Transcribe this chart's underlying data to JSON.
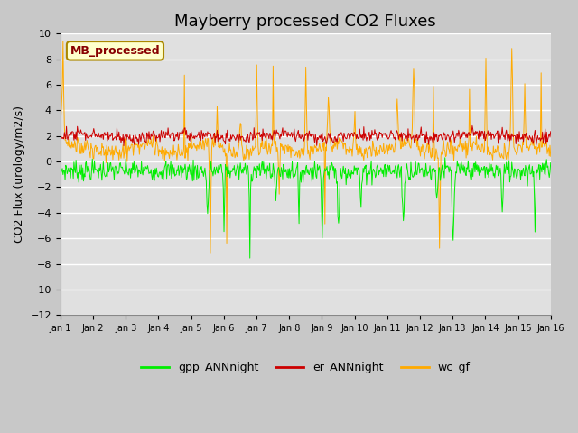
{
  "title": "Mayberry processed CO2 Fluxes",
  "ylabel": "CO2 Flux (urology/m2/s)",
  "ylim": [
    -12,
    10
  ],
  "yticks": [
    -12,
    -10,
    -8,
    -6,
    -4,
    -2,
    0,
    2,
    4,
    6,
    8,
    10
  ],
  "xlabel_ticks": [
    "Jan 1",
    "Jan 2",
    "Jan 3",
    "Jan 4",
    "Jan 5",
    "Jan 6",
    "Jan 7",
    "Jan 8",
    "Jan 9",
    "Jan 10",
    "Jan 11",
    "Jan 12",
    "Jan 13",
    "Jan 14",
    "Jan 15",
    "Jan 16"
  ],
  "fig_bg_color": "#c8c8c8",
  "plot_bg_color": "#e0e0e0",
  "line_gpp_color": "#00ee00",
  "line_er_color": "#cc0000",
  "line_wc_color": "#ffaa00",
  "legend_label": "MB_processed",
  "legend_fg": "#880000",
  "legend_bg": "#ffffcc",
  "legend_edge": "#aa8800",
  "title_fontsize": 13,
  "axis_fontsize": 9,
  "tick_fontsize": 8,
  "n_points": 720,
  "random_seed": 7
}
